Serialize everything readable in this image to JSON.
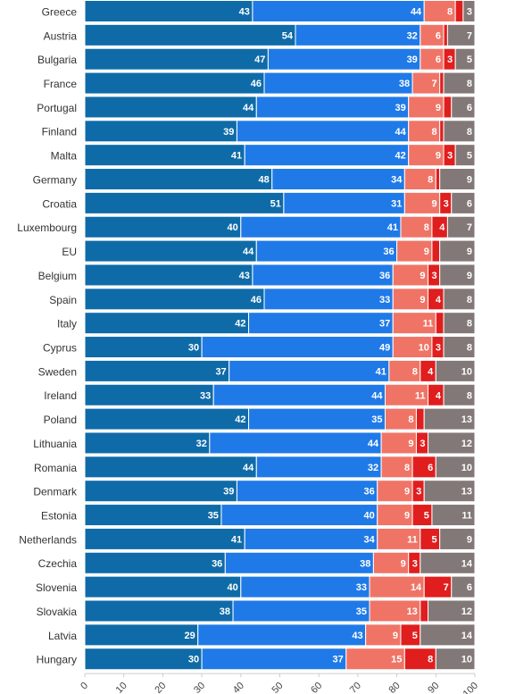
{
  "chart_data": {
    "type": "bar",
    "orientation": "horizontal",
    "stacked": true,
    "title": "",
    "xlabel": "",
    "ylabel": "",
    "xlim": [
      0,
      100
    ],
    "xticks": [
      "0",
      "10",
      "20",
      "30",
      "40",
      "50",
      "60",
      "70",
      "80",
      "90",
      "100"
    ],
    "grid": false,
    "legend": "none",
    "categories": [
      "Greece",
      "Austria",
      "Bulgaria",
      "France",
      "Portugal",
      "Finland",
      "Malta",
      "Germany",
      "Croatia",
      "Luxembourg",
      "EU",
      "Belgium",
      "Spain",
      "Italy",
      "Cyprus",
      "Sweden",
      "Ireland",
      "Poland",
      "Lithuania",
      "Romania",
      "Denmark",
      "Estonia",
      "Netherlands",
      "Czechia",
      "Slovenia",
      "Slovakia",
      "Latvia",
      "Hungary"
    ],
    "series": [
      {
        "color": "#0f6ba8",
        "values": [
          43,
          54,
          47,
          46,
          44,
          39,
          41,
          48,
          51,
          40,
          44,
          43,
          46,
          42,
          30,
          37,
          33,
          42,
          32,
          44,
          39,
          35,
          41,
          36,
          40,
          38,
          29,
          30
        ]
      },
      {
        "color": "#1f7ae8",
        "values": [
          44,
          32,
          39,
          38,
          39,
          44,
          42,
          34,
          31,
          41,
          36,
          36,
          33,
          37,
          49,
          41,
          44,
          35,
          44,
          32,
          36,
          40,
          34,
          38,
          33,
          35,
          43,
          37
        ]
      },
      {
        "color": "#f07466",
        "values": [
          8,
          6,
          6,
          7,
          9,
          8,
          9,
          8,
          9,
          8,
          9,
          9,
          9,
          11,
          10,
          8,
          11,
          8,
          9,
          8,
          9,
          9,
          11,
          9,
          14,
          13,
          9,
          15
        ]
      },
      {
        "color": "#e01e1e",
        "values": [
          2,
          1,
          3,
          1,
          2,
          1,
          3,
          1,
          3,
          4,
          2,
          3,
          4,
          2,
          3,
          4,
          4,
          2,
          3,
          6,
          3,
          5,
          5,
          3,
          7,
          2,
          5,
          8
        ]
      },
      {
        "color": "#827877",
        "values": [
          3,
          7,
          5,
          8,
          6,
          8,
          5,
          9,
          6,
          7,
          9,
          9,
          8,
          8,
          8,
          10,
          8,
          13,
          12,
          10,
          13,
          11,
          9,
          14,
          6,
          12,
          14,
          10
        ]
      }
    ]
  }
}
